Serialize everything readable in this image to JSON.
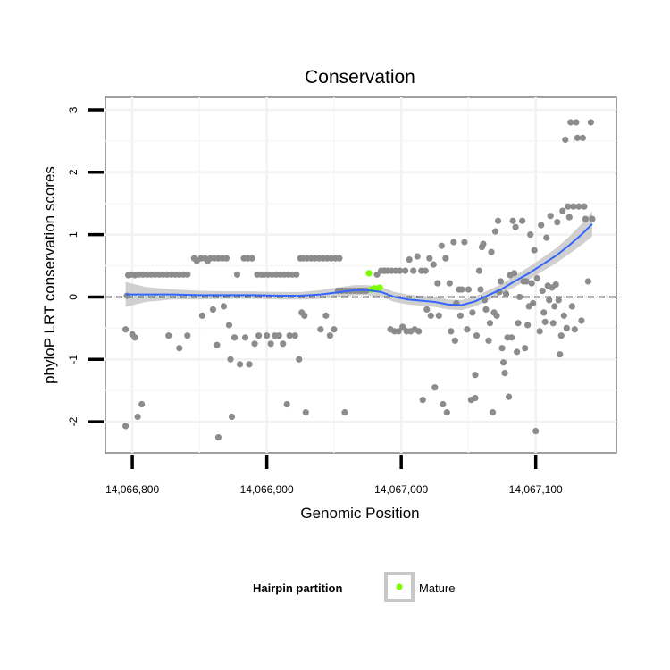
{
  "chart_data": {
    "type": "scatter",
    "title": "Conservation",
    "xlabel": "Genomic Position",
    "ylabel": "phyloP LRT conservation scores",
    "xlim": [
      14066780,
      14067160
    ],
    "ylim": [
      -2.5,
      3.2
    ],
    "x_ticks": [
      14066800,
      14066900,
      14067000,
      14067100
    ],
    "x_tick_labels": [
      "14,066,800",
      "14,066,900",
      "14,067,000",
      "14,067,100"
    ],
    "y_ticks": [
      -2,
      -1,
      0,
      1,
      2,
      3
    ],
    "y_tick_labels": [
      "-2",
      "-1",
      "0",
      "1",
      "2",
      "3"
    ],
    "grid": true,
    "reference_line": {
      "y": 0,
      "style": "dashed"
    },
    "legend": {
      "title": "Hairpin partition",
      "position": "bottom",
      "entries": [
        {
          "label": "Mature",
          "color": "#7CFC00"
        }
      ]
    },
    "colors": {
      "points": "#8c8c8c",
      "mature": "#7CFC00",
      "smooth": "#3366ff",
      "ribbon": "#c8c8c8"
    },
    "series": [
      {
        "role": "background",
        "points": [
          [
            14066795,
            -2.07
          ],
          [
            14066795,
            -0.52
          ],
          [
            14066796,
            0.02
          ],
          [
            14066797,
            0.35
          ],
          [
            14066799,
            0.36
          ],
          [
            14066800,
            -0.6
          ],
          [
            14066802,
            0.35
          ],
          [
            14066802,
            -0.65
          ],
          [
            14066804,
            -1.92
          ],
          [
            14066805,
            0.36
          ],
          [
            14066807,
            -1.72
          ],
          [
            14066808,
            0.36
          ],
          [
            14066811,
            0.36
          ],
          [
            14066814,
            0.36
          ],
          [
            14066817,
            0.36
          ],
          [
            14066820,
            0.36
          ],
          [
            14066823,
            0.36
          ],
          [
            14066826,
            0.36
          ],
          [
            14066829,
            0.36
          ],
          [
            14066832,
            0.36
          ],
          [
            14066835,
            0.36
          ],
          [
            14066838,
            0.36
          ],
          [
            14066841,
            0.36
          ],
          [
            14066827,
            -0.62
          ],
          [
            14066835,
            -0.82
          ],
          [
            14066841,
            -0.62
          ],
          [
            14066846,
            0.62
          ],
          [
            14066848,
            0.58
          ],
          [
            14066851,
            0.62
          ],
          [
            14066852,
            -0.3
          ],
          [
            14066854,
            0.62
          ],
          [
            14066856,
            0.58
          ],
          [
            14066858,
            0.62
          ],
          [
            14066860,
            -0.2
          ],
          [
            14066861,
            0.62
          ],
          [
            14066863,
            -0.77
          ],
          [
            14066864,
            0.62
          ],
          [
            14066864,
            -2.25
          ],
          [
            14066867,
            0.62
          ],
          [
            14066868,
            -0.15
          ],
          [
            14066870,
            0.62
          ],
          [
            14066872,
            -0.45
          ],
          [
            14066873,
            -1.0
          ],
          [
            14066874,
            -1.92
          ],
          [
            14066876,
            -0.65
          ],
          [
            14066878,
            0.36
          ],
          [
            14066880,
            -1.08
          ],
          [
            14066883,
            0.62
          ],
          [
            14066884,
            -0.65
          ],
          [
            14066886,
            0.62
          ],
          [
            14066887,
            -1.08
          ],
          [
            14066889,
            0.62
          ],
          [
            14066891,
            -0.75
          ],
          [
            14066893,
            0.36
          ],
          [
            14066894,
            -0.62
          ],
          [
            14066896,
            0.36
          ],
          [
            14066898,
            0.36
          ],
          [
            14066900,
            -0.62
          ],
          [
            14066901,
            0.36
          ],
          [
            14066903,
            -0.75
          ],
          [
            14066904,
            0.36
          ],
          [
            14066906,
            -0.62
          ],
          [
            14066907,
            0.36
          ],
          [
            14066909,
            -0.62
          ],
          [
            14066910,
            0.36
          ],
          [
            14066912,
            -0.75
          ],
          [
            14066913,
            0.36
          ],
          [
            14066915,
            -1.72
          ],
          [
            14066916,
            0.36
          ],
          [
            14066917,
            -0.62
          ],
          [
            14066919,
            0.36
          ],
          [
            14066921,
            -0.62
          ],
          [
            14066922,
            0.36
          ],
          [
            14066924,
            -1.0
          ],
          [
            14066925,
            0.62
          ],
          [
            14066926,
            -0.25
          ],
          [
            14066927,
            0.62
          ],
          [
            14066929,
            -1.85
          ],
          [
            14066930,
            0.62
          ],
          [
            14066928,
            -0.3
          ],
          [
            14066933,
            0.62
          ],
          [
            14066936,
            0.62
          ],
          [
            14066939,
            0.62
          ],
          [
            14066940,
            -0.52
          ],
          [
            14066942,
            0.62
          ],
          [
            14066944,
            -0.3
          ],
          [
            14066945,
            0.62
          ],
          [
            14066947,
            -0.62
          ],
          [
            14066948,
            0.62
          ],
          [
            14066950,
            -0.52
          ],
          [
            14066951,
            0.62
          ],
          [
            14066953,
            0.1
          ],
          [
            14066954,
            0.62
          ],
          [
            14066956,
            0.1
          ],
          [
            14066958,
            -1.85
          ],
          [
            14066959,
            0.1
          ],
          [
            14066962,
            0.1
          ],
          [
            14066965,
            0.1
          ],
          [
            14066968,
            0.1
          ],
          [
            14066970,
            0.1
          ],
          [
            14066972,
            0.1
          ],
          [
            14066974,
            0.1
          ],
          [
            14066982,
            0.36
          ],
          [
            14066985,
            0.42
          ],
          [
            14066987,
            0.42
          ],
          [
            14066988,
            0.42
          ],
          [
            14066990,
            0.42
          ],
          [
            14066992,
            -0.52
          ],
          [
            14066993,
            0.42
          ],
          [
            14066995,
            -0.55
          ],
          [
            14066996,
            0.42
          ],
          [
            14066998,
            -0.55
          ],
          [
            14066999,
            0.42
          ],
          [
            14067001,
            -0.48
          ],
          [
            14067003,
            0.42
          ],
          [
            14067004,
            -0.55
          ],
          [
            14067006,
            0.6
          ],
          [
            14067007,
            -0.55
          ],
          [
            14067009,
            0.42
          ],
          [
            14067010,
            -0.52
          ],
          [
            14067012,
            0.65
          ],
          [
            14067013,
            -0.55
          ],
          [
            14067015,
            0.42
          ],
          [
            14067016,
            -1.65
          ],
          [
            14067018,
            0.42
          ],
          [
            14067019,
            -0.2
          ],
          [
            14067021,
            0.62
          ],
          [
            14067022,
            -0.3
          ],
          [
            14067024,
            0.52
          ],
          [
            14067025,
            -1.45
          ],
          [
            14067027,
            0.22
          ],
          [
            14067028,
            -0.3
          ],
          [
            14067030,
            0.82
          ],
          [
            14067031,
            -1.72
          ],
          [
            14067033,
            0.62
          ],
          [
            14067034,
            -1.85
          ],
          [
            14067036,
            0.22
          ],
          [
            14067037,
            -0.55
          ],
          [
            14067039,
            0.88
          ],
          [
            14067040,
            -0.7
          ],
          [
            14067041,
            -0.1
          ],
          [
            14067043,
            0.12
          ],
          [
            14067044,
            -0.3
          ],
          [
            14067045,
            0.12
          ],
          [
            14067047,
            0.88
          ],
          [
            14067049,
            -0.52
          ],
          [
            14067050,
            0.12
          ],
          [
            14067052,
            -1.65
          ],
          [
            14067053,
            -0.25
          ],
          [
            14067055,
            -1.25
          ],
          [
            14067055,
            -1.62
          ],
          [
            14067056,
            -0.62
          ],
          [
            14067058,
            0.42
          ],
          [
            14067059,
            0.12
          ],
          [
            14067060,
            0.8
          ],
          [
            14067061,
            0.85
          ],
          [
            14067062,
            -0.05
          ],
          [
            14067063,
            -0.2
          ],
          [
            14067065,
            -0.7
          ],
          [
            14067066,
            -0.42
          ],
          [
            14067067,
            0.72
          ],
          [
            14067068,
            -1.85
          ],
          [
            14067069,
            -0.25
          ],
          [
            14067070,
            1.05
          ],
          [
            14067071,
            -0.3
          ],
          [
            14067072,
            1.22
          ],
          [
            14067073,
            0.08
          ],
          [
            14067074,
            0.25
          ],
          [
            14067075,
            -0.82
          ],
          [
            14067076,
            -1.05
          ],
          [
            14067077,
            -1.22
          ],
          [
            14067078,
            0.05
          ],
          [
            14067079,
            -0.65
          ],
          [
            14067080,
            -1.6
          ],
          [
            14067081,
            0.35
          ],
          [
            14067082,
            -0.65
          ],
          [
            14067083,
            1.22
          ],
          [
            14067084,
            0.38
          ],
          [
            14067085,
            1.12
          ],
          [
            14067086,
            -0.88
          ],
          [
            14067087,
            -0.42
          ],
          [
            14067088,
            0.0
          ],
          [
            14067090,
            1.22
          ],
          [
            14067091,
            0.25
          ],
          [
            14067092,
            -0.82
          ],
          [
            14067093,
            0.25
          ],
          [
            14067094,
            -0.45
          ],
          [
            14067095,
            -0.15
          ],
          [
            14067096,
            1.0
          ],
          [
            14067097,
            0.22
          ],
          [
            14067098,
            -0.1
          ],
          [
            14067099,
            0.75
          ],
          [
            14067100,
            -2.15
          ],
          [
            14067101,
            0.3
          ],
          [
            14067103,
            -0.55
          ],
          [
            14067104,
            1.15
          ],
          [
            14067105,
            0.1
          ],
          [
            14067106,
            -0.25
          ],
          [
            14067107,
            -0.4
          ],
          [
            14067108,
            0.95
          ],
          [
            14067109,
            0.18
          ],
          [
            14067110,
            -0.05
          ],
          [
            14067111,
            1.3
          ],
          [
            14067112,
            0.15
          ],
          [
            14067113,
            -0.42
          ],
          [
            14067114,
            -0.15
          ],
          [
            14067115,
            0.2
          ],
          [
            14067116,
            1.2
          ],
          [
            14067117,
            -0.05
          ],
          [
            14067118,
            -0.92
          ],
          [
            14067119,
            -0.62
          ],
          [
            14067120,
            1.38
          ],
          [
            14067121,
            -0.3
          ],
          [
            14067122,
            2.52
          ],
          [
            14067123,
            -0.5
          ],
          [
            14067124,
            1.45
          ],
          [
            14067125,
            1.28
          ],
          [
            14067126,
            2.8
          ],
          [
            14067127,
            -0.15
          ],
          [
            14067128,
            1.45
          ],
          [
            14067129,
            -0.52
          ],
          [
            14067130,
            2.8
          ],
          [
            14067131,
            2.55
          ],
          [
            14067132,
            1.45
          ],
          [
            14067134,
            -0.38
          ],
          [
            14067135,
            2.55
          ],
          [
            14067136,
            1.45
          ],
          [
            14067137,
            1.25
          ],
          [
            14067139,
            0.25
          ],
          [
            14067141,
            2.8
          ],
          [
            14067142,
            1.25
          ]
        ]
      },
      {
        "role": "Mature",
        "points": [
          [
            14066976,
            0.38
          ],
          [
            14066978,
            0.12
          ],
          [
            14066980,
            0.14
          ],
          [
            14066982,
            0.13
          ],
          [
            14066984,
            0.15
          ]
        ]
      }
    ],
    "smooth_line": {
      "x": [
        14066795,
        14066810,
        14066830,
        14066850,
        14066870,
        14066890,
        14066910,
        14066925,
        14066940,
        14066955,
        14066965,
        14066975,
        14066985,
        14066995,
        14067005,
        14067015,
        14067025,
        14067035,
        14067045,
        14067055,
        14067065,
        14067075,
        14067085,
        14067095,
        14067105,
        14067115,
        14067125,
        14067135,
        14067142
      ],
      "y": [
        0.04,
        0.04,
        0.04,
        0.03,
        0.03,
        0.03,
        0.02,
        0.02,
        0.04,
        0.08,
        0.11,
        0.11,
        0.08,
        0.0,
        -0.04,
        -0.06,
        -0.08,
        -0.12,
        -0.13,
        -0.07,
        0.03,
        0.13,
        0.26,
        0.38,
        0.52,
        0.66,
        0.83,
        1.02,
        1.17
      ],
      "ci_halfwidth": [
        0.2,
        0.12,
        0.08,
        0.07,
        0.06,
        0.06,
        0.06,
        0.06,
        0.07,
        0.08,
        0.08,
        0.08,
        0.08,
        0.08,
        0.08,
        0.08,
        0.08,
        0.08,
        0.08,
        0.08,
        0.08,
        0.08,
        0.09,
        0.1,
        0.11,
        0.12,
        0.14,
        0.17,
        0.2
      ]
    }
  }
}
